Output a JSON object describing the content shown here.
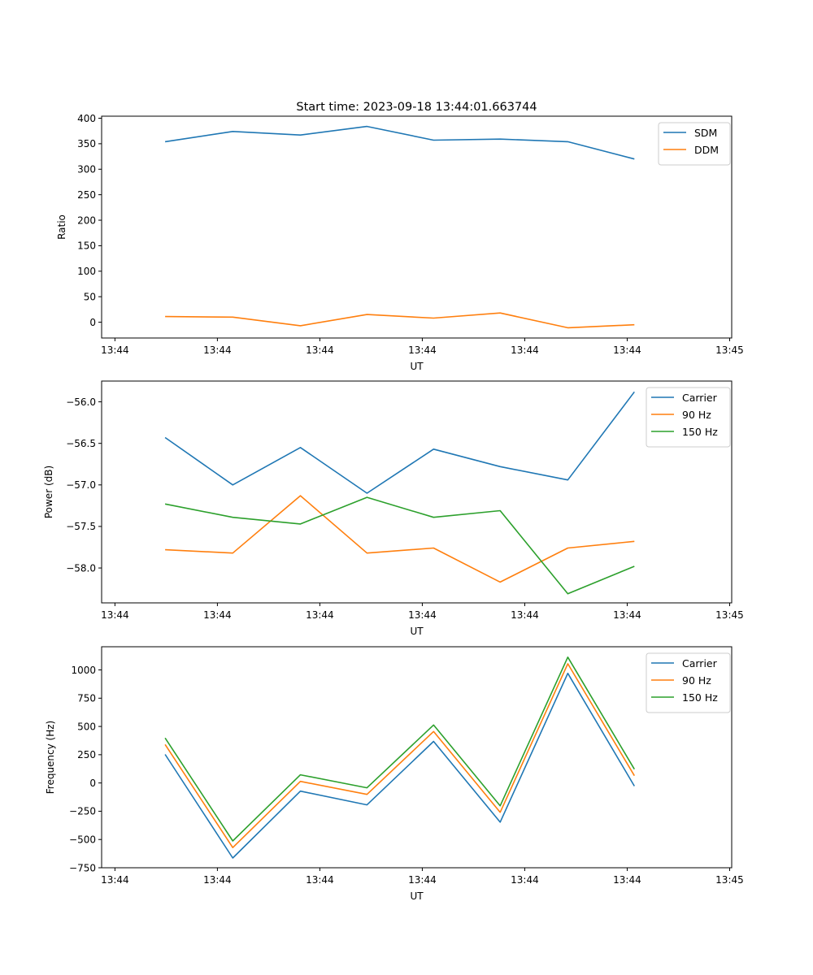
{
  "figure": {
    "title": "Start time: 2023-09-18 13:44:01.663744"
  },
  "chart_data": [
    {
      "type": "line",
      "title": "Start time: 2023-09-18 13:44:01.663744",
      "xlabel": "UT",
      "ylabel": "Ratio",
      "x_tick_labels": [
        "13:44",
        "13:44",
        "13:44",
        "13:44",
        "13:44",
        "13:44",
        "13:45"
      ],
      "x_tick_values": [
        0,
        1,
        2,
        3,
        4,
        5,
        6
      ],
      "xlim": [
        -0.13,
        6.02
      ],
      "x": [
        0.49,
        1.15,
        1.81,
        2.46,
        3.11,
        3.76,
        4.42,
        5.07
      ],
      "ylim": [
        -31,
        404
      ],
      "y_ticks": [
        0,
        50,
        100,
        150,
        200,
        250,
        300,
        350,
        400
      ],
      "y_tick_labels": [
        "0",
        "50",
        "100",
        "150",
        "200",
        "250",
        "300",
        "350",
        "400"
      ],
      "legend_position": "upper-right",
      "grid": false,
      "series": [
        {
          "name": "SDM",
          "color": "#1f77b4",
          "values": [
            354,
            374,
            367,
            384,
            357,
            359,
            354,
            320
          ]
        },
        {
          "name": "DDM",
          "color": "#ff7f0e",
          "values": [
            11,
            10,
            -7,
            15,
            8,
            18,
            -11,
            -5
          ]
        }
      ]
    },
    {
      "type": "line",
      "title": "",
      "xlabel": "UT",
      "ylabel": "Power (dB)",
      "x_tick_labels": [
        "13:44",
        "13:44",
        "13:44",
        "13:44",
        "13:44",
        "13:44",
        "13:45"
      ],
      "x_tick_values": [
        0,
        1,
        2,
        3,
        4,
        5,
        6
      ],
      "xlim": [
        -0.13,
        6.02
      ],
      "x": [
        0.49,
        1.15,
        1.81,
        2.46,
        3.11,
        3.76,
        4.42,
        5.07
      ],
      "ylim": [
        -58.42,
        -55.75
      ],
      "y_ticks": [
        -58.0,
        -57.5,
        -57.0,
        -56.5,
        -56.0
      ],
      "y_tick_labels": [
        "−58.0",
        "−57.5",
        "−57.0",
        "−56.5",
        "−56.0"
      ],
      "legend_position": "upper-right",
      "grid": false,
      "series": [
        {
          "name": "Carrier",
          "color": "#1f77b4",
          "values": [
            -56.43,
            -57.0,
            -56.55,
            -57.1,
            -56.57,
            -56.78,
            -56.94,
            -55.88
          ]
        },
        {
          "name": "90 Hz",
          "color": "#ff7f0e",
          "values": [
            -57.78,
            -57.82,
            -57.13,
            -57.82,
            -57.76,
            -58.17,
            -57.76,
            -57.68
          ]
        },
        {
          "name": "150 Hz",
          "color": "#2ca02c",
          "values": [
            -57.23,
            -57.39,
            -57.47,
            -57.15,
            -57.39,
            -57.31,
            -58.31,
            -57.98
          ]
        }
      ]
    },
    {
      "type": "line",
      "title": "",
      "xlabel": "UT",
      "ylabel": "Frequency (Hz)",
      "x_tick_labels": [
        "13:44",
        "13:44",
        "13:44",
        "13:44",
        "13:44",
        "13:44",
        "13:45"
      ],
      "x_tick_values": [
        0,
        1,
        2,
        3,
        4,
        5,
        6
      ],
      "xlim": [
        -0.13,
        6.02
      ],
      "x": [
        0.49,
        1.15,
        1.81,
        2.46,
        3.11,
        3.76,
        4.42,
        5.07
      ],
      "ylim": [
        -750,
        1205
      ],
      "y_ticks": [
        -750,
        -500,
        -250,
        0,
        250,
        500,
        750,
        1000
      ],
      "y_tick_labels": [
        "−750",
        "−500",
        "−250",
        "0",
        "250",
        "500",
        "750",
        "1000"
      ],
      "legend_position": "upper-right",
      "grid": false,
      "series": [
        {
          "name": "Carrier",
          "color": "#1f77b4",
          "values": [
            253,
            -664,
            -72,
            -194,
            368,
            -347,
            970,
            -28
          ]
        },
        {
          "name": "90 Hz",
          "color": "#ff7f0e",
          "values": [
            340,
            -572,
            14,
            -101,
            455,
            -260,
            1055,
            64
          ]
        },
        {
          "name": "150 Hz",
          "color": "#2ca02c",
          "values": [
            398,
            -513,
            72,
            -43,
            513,
            -202,
            1113,
            122
          ]
        }
      ]
    }
  ]
}
